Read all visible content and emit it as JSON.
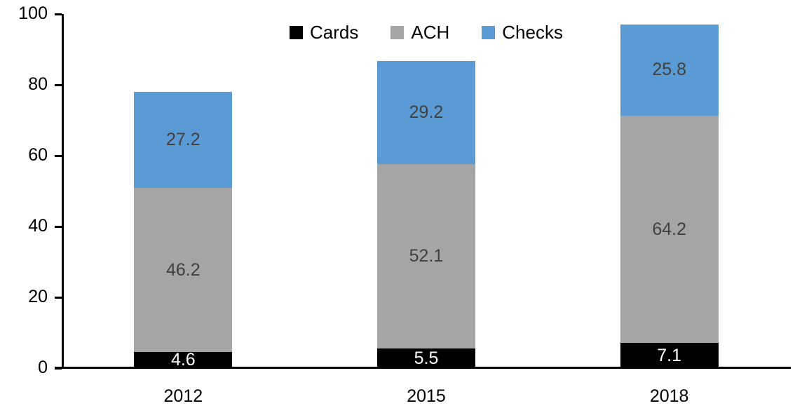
{
  "chart_data": {
    "type": "bar",
    "stacked": true,
    "title": "",
    "xlabel": "",
    "ylabel": "",
    "categories": [
      "2012",
      "2015",
      "2018"
    ],
    "series": [
      {
        "name": "Cards",
        "color": "#000000",
        "label_color": "#ffffff",
        "values": [
          4.6,
          5.5,
          7.1
        ]
      },
      {
        "name": "ACH",
        "color": "#A5A5A5",
        "label_color": "#404040",
        "values": [
          46.2,
          52.1,
          64.2
        ]
      },
      {
        "name": "Checks",
        "color": "#5B9BD5",
        "label_color": "#404040",
        "values": [
          27.2,
          29.2,
          25.8
        ]
      }
    ],
    "yticks": [
      0,
      20,
      40,
      60,
      80,
      100
    ],
    "ylim": [
      0,
      100
    ],
    "grid": false,
    "legend_position": "top-center",
    "axis_color": "#000000",
    "data_labels": true,
    "label_decimals": 1
  }
}
